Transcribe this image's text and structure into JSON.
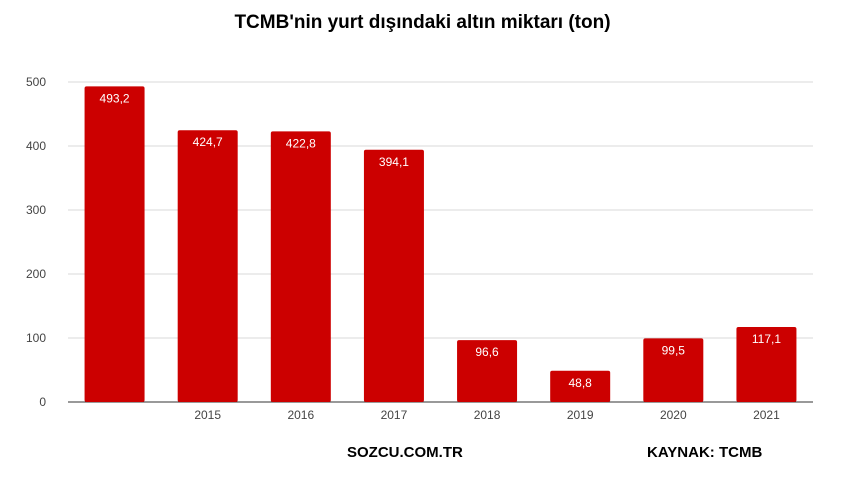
{
  "chart_data": {
    "type": "bar",
    "title": "TCMB'nin yurt dışındaki altın miktarı (ton)",
    "categories": [
      "",
      "2015",
      "2016",
      "2017",
      "2018",
      "2019",
      "2020",
      "2021"
    ],
    "values": [
      493.2,
      424.7,
      422.8,
      394.1,
      96.6,
      48.8,
      99.5,
      117.1
    ],
    "value_labels": [
      "493,2",
      "424,7",
      "422,8",
      "394,1",
      "96,6",
      "48,8",
      "99,5",
      "117,1"
    ],
    "yticks": [
      0,
      100,
      200,
      300,
      400,
      500
    ],
    "ylim": [
      0,
      500
    ],
    "xlabel": "",
    "ylabel": "",
    "grid": true,
    "legend": "none",
    "bar_color": "#cc0000"
  },
  "footer": {
    "source": "SOZCU.COM.TR",
    "credit": "KAYNAK: TCMB"
  }
}
